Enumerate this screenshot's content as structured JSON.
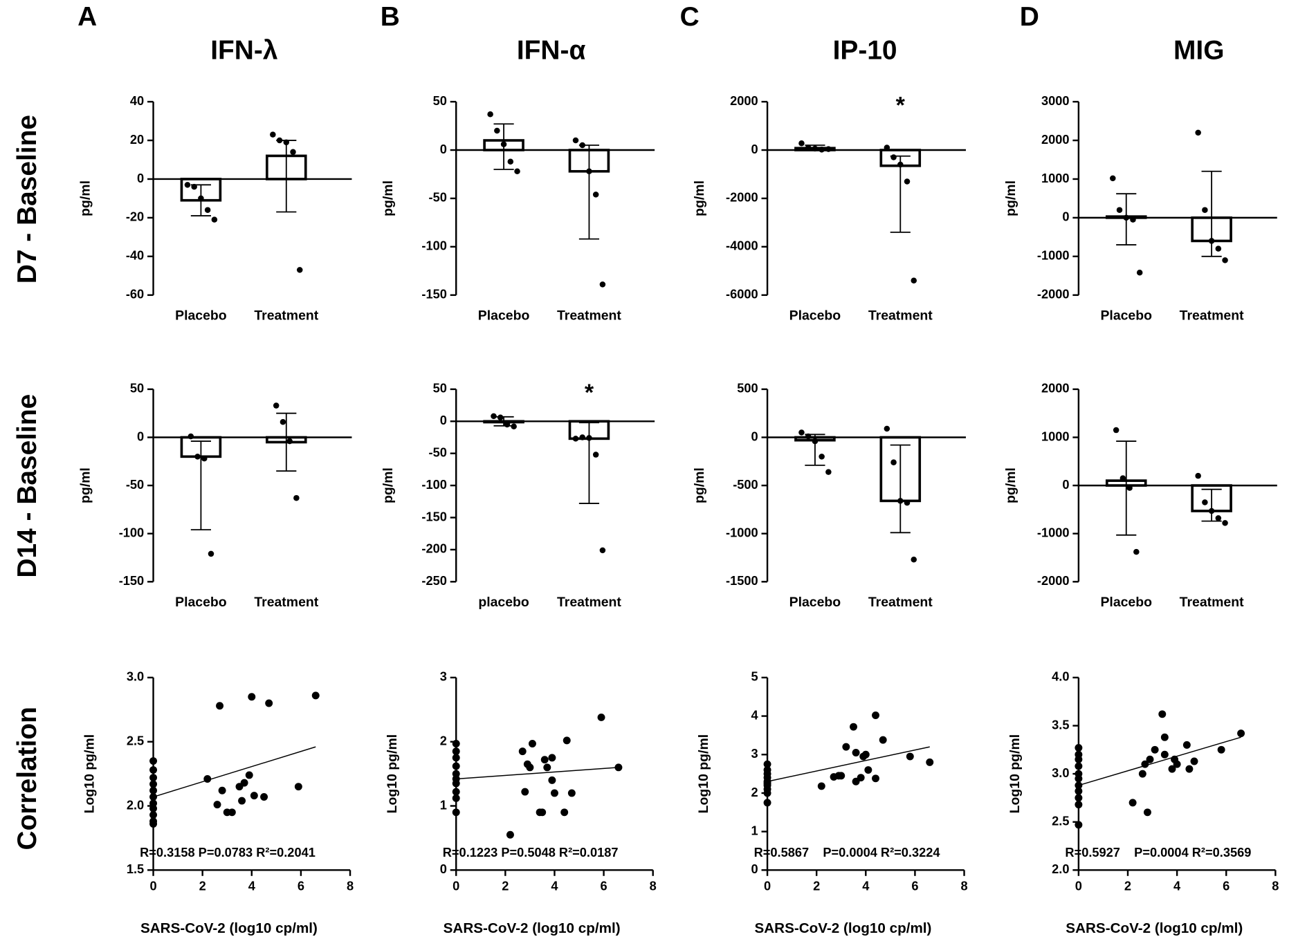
{
  "panel_letters": [
    "A",
    "B",
    "C",
    "D"
  ],
  "column_titles": [
    "IFN-λ",
    "IFN-α",
    "IP-10",
    "MIG"
  ],
  "row_labels": [
    "D7 - Baseline",
    "D14 - Baseline",
    "Correlation"
  ],
  "chart_data": [
    {
      "type": "bar",
      "ylabel": "pg/ml",
      "categories": [
        "Placebo",
        "Treatment"
      ],
      "values": [
        -11,
        12
      ],
      "error_bars": [
        [
          -19,
          -3
        ],
        [
          -17,
          20
        ]
      ],
      "points": [
        [
          -3,
          -4,
          -10,
          -16,
          -21
        ],
        [
          23,
          20,
          19,
          14,
          -47
        ]
      ],
      "ylim": [
        -60,
        40
      ],
      "yticks": [
        -60,
        -40,
        -20,
        0,
        20,
        40
      ]
    },
    {
      "type": "bar",
      "ylabel": "pg/ml",
      "categories": [
        "Placebo",
        "Treatment"
      ],
      "values": [
        10,
        -22
      ],
      "error_bars": [
        [
          -20,
          27
        ],
        [
          -92,
          5
        ]
      ],
      "points": [
        [
          37,
          20,
          6,
          -12,
          -22
        ],
        [
          10,
          5,
          -22,
          -46,
          -139
        ]
      ],
      "ylim": [
        -150,
        50
      ],
      "yticks": [
        -150,
        -100,
        -50,
        0,
        50
      ]
    },
    {
      "type": "bar",
      "ylabel": "pg/ml",
      "categories": [
        "Placebo",
        "Treatment"
      ],
      "values": [
        80,
        -650
      ],
      "error_bars": [
        [
          20,
          200
        ],
        [
          -3400,
          -250
        ]
      ],
      "points": [
        [
          280,
          100,
          60,
          20,
          40
        ],
        [
          100,
          -300,
          -600,
          -1300,
          -5400
        ]
      ],
      "ylim": [
        -6000,
        2000
      ],
      "yticks": [
        -6000,
        -4000,
        -2000,
        0,
        2000
      ],
      "annotation": "*"
    },
    {
      "type": "bar",
      "ylabel": "pg/ml",
      "categories": [
        "Placebo",
        "Treatment"
      ],
      "values": [
        30,
        -600
      ],
      "error_bars": [
        [
          -700,
          620
        ],
        [
          -1000,
          1200
        ]
      ],
      "points": [
        [
          1020,
          200,
          0,
          -50,
          -1420
        ],
        [
          2200,
          200,
          -600,
          -800,
          -1100
        ]
      ],
      "ylim": [
        -2000,
        3000
      ],
      "yticks": [
        -2000,
        -1000,
        0,
        1000,
        2000,
        3000
      ]
    },
    {
      "type": "bar",
      "ylabel": "pg/ml",
      "categories": [
        "Placebo",
        "Treatment"
      ],
      "values": [
        -20,
        -5
      ],
      "error_bars": [
        [
          -96,
          -4
        ],
        [
          -35,
          25
        ]
      ],
      "points": [
        [
          1,
          -20,
          -22,
          -121
        ],
        [
          33,
          16,
          -4,
          -63
        ]
      ],
      "ylim": [
        -150,
        50
      ],
      "yticks": [
        -150,
        -100,
        -50,
        0,
        50
      ]
    },
    {
      "type": "bar",
      "ylabel": "pg/ml",
      "categories": [
        "placebo",
        "Treatment"
      ],
      "values": [
        0,
        -27
      ],
      "error_bars": [
        [
          -7,
          7
        ],
        [
          -128,
          -2
        ]
      ],
      "points": [
        [
          8,
          6,
          -5,
          -8
        ],
        [
          -27,
          -25,
          -26,
          -52,
          -201
        ]
      ],
      "ylim": [
        -250,
        50
      ],
      "yticks": [
        -250,
        -200,
        -150,
        -100,
        -50,
        0,
        50
      ],
      "annotation": "*"
    },
    {
      "type": "bar",
      "ylabel": "pg/ml",
      "categories": [
        "Placebo",
        "Treatment"
      ],
      "values": [
        -30,
        -660
      ],
      "error_bars": [
        [
          -290,
          30
        ],
        [
          -990,
          -80
        ]
      ],
      "points": [
        [
          50,
          10,
          -40,
          -200,
          -360
        ],
        [
          90,
          -260,
          -660,
          -680,
          -1270
        ]
      ],
      "ylim": [
        -1500,
        500
      ],
      "yticks": [
        -1500,
        -1000,
        -500,
        0,
        500
      ]
    },
    {
      "type": "bar",
      "ylabel": "pg/ml",
      "categories": [
        "Placebo",
        "Treatment"
      ],
      "values": [
        100,
        -530
      ],
      "error_bars": [
        [
          -1030,
          920
        ],
        [
          -740,
          -80
        ]
      ],
      "points": [
        [
          1150,
          150,
          -50,
          -1380
        ],
        [
          200,
          -350,
          -530,
          -680,
          -780
        ]
      ],
      "ylim": [
        -2000,
        2000
      ],
      "yticks": [
        -2000,
        -1000,
        0,
        1000,
        2000
      ]
    },
    {
      "type": "scatter",
      "ylabel": "Log10 pg/ml",
      "xlabel": "SARS-CoV-2 (log10 cp/ml)",
      "stats": "R=0.3158 P=0.0783 R²=0.2041",
      "x": [
        0,
        0,
        0,
        0,
        0,
        0,
        0,
        0,
        0,
        0,
        0,
        2.2,
        2.6,
        2.7,
        2.8,
        3.0,
        3.2,
        3.5,
        3.6,
        3.7,
        3.9,
        4.0,
        4.1,
        4.5,
        4.7,
        5.9,
        6.6
      ],
      "y": [
        2.35,
        2.28,
        2.22,
        2.17,
        2.12,
        2.07,
        2.02,
        1.98,
        1.93,
        1.88,
        1.86,
        2.21,
        2.01,
        2.78,
        2.12,
        1.95,
        1.95,
        2.15,
        2.04,
        2.18,
        2.24,
        2.85,
        2.08,
        2.07,
        2.8,
        2.15,
        2.86
      ],
      "fit_line": {
        "x": [
          0,
          6.6
        ],
        "y": [
          2.07,
          2.46
        ]
      },
      "xlim": [
        0,
        8
      ],
      "xticks": [
        0,
        2,
        4,
        6,
        8
      ],
      "ylim": [
        1.5,
        3
      ],
      "yticks": [
        1.5,
        {
          "value": 2,
          "label": "2.0"
        },
        2.5,
        {
          "value": 3,
          "label": "3.0"
        }
      ]
    },
    {
      "type": "scatter",
      "ylabel": "Log10 pg/ml",
      "xlabel": "SARS-CoV-2 (log10 cp/ml)",
      "stats": "R=0.1223 P=0.5048 R²=0.0187",
      "x": [
        0,
        0,
        0,
        0,
        0,
        0,
        0,
        0,
        0,
        0,
        2.2,
        2.7,
        2.8,
        2.9,
        3.0,
        3.1,
        3.4,
        3.5,
        3.6,
        3.7,
        3.9,
        3.9,
        4.0,
        4.4,
        4.5,
        4.7,
        5.9,
        6.6
      ],
      "y": [
        1.97,
        1.85,
        1.75,
        1.62,
        1.5,
        1.42,
        1.35,
        1.22,
        1.12,
        0.9,
        0.55,
        1.85,
        1.22,
        1.65,
        1.6,
        1.97,
        0.9,
        0.9,
        1.72,
        1.6,
        1.75,
        1.4,
        1.2,
        0.9,
        2.02,
        1.2,
        2.38,
        1.6
      ],
      "fit_line": {
        "x": [
          0,
          6.6
        ],
        "y": [
          1.42,
          1.6
        ]
      },
      "xlim": [
        0,
        8
      ],
      "xticks": [
        0,
        2,
        4,
        6,
        8
      ],
      "ylim": [
        0,
        3
      ],
      "yticks": [
        0,
        1,
        2,
        3
      ]
    },
    {
      "type": "scatter",
      "ylabel": "Log10 pg/ml",
      "xlabel": "SARS-CoV-2 (log10 cp/ml)",
      "stats": "R=0.5867    P=0.0004 R²=0.3224",
      "x": [
        0,
        0,
        0,
        0,
        0,
        0,
        0,
        0,
        0,
        0,
        2.2,
        2.7,
        2.9,
        3.0,
        3.2,
        3.5,
        3.6,
        3.6,
        3.8,
        3.9,
        4.0,
        4.1,
        4.4,
        4.4,
        4.7,
        5.8,
        6.6
      ],
      "y": [
        2.75,
        2.6,
        2.5,
        2.4,
        2.3,
        2.25,
        2.2,
        2.1,
        2.0,
        1.75,
        2.18,
        2.42,
        2.45,
        2.45,
        3.2,
        3.72,
        2.3,
        3.05,
        2.4,
        2.95,
        3.0,
        2.6,
        2.38,
        4.02,
        3.38,
        2.95,
        2.8
      ],
      "fit_line": {
        "x": [
          0,
          6.6
        ],
        "y": [
          2.3,
          3.2
        ]
      },
      "xlim": [
        0,
        8
      ],
      "xticks": [
        0,
        2,
        4,
        6,
        8
      ],
      "ylim": [
        0,
        5
      ],
      "yticks": [
        0,
        1,
        2,
        3,
        4,
        5
      ]
    },
    {
      "type": "scatter",
      "ylabel": "Log10 pg/ml",
      "xlabel": "SARS-CoV-2 (log10 cp/ml)",
      "stats": "R=0.5927    P=0.0004 R²=0.3569",
      "x": [
        0,
        0,
        0,
        0,
        0,
        0,
        0,
        0,
        0,
        0,
        0,
        2.2,
        2.6,
        2.7,
        2.8,
        2.9,
        3.1,
        3.4,
        3.5,
        3.5,
        3.8,
        3.9,
        4.0,
        4.4,
        4.5,
        4.7,
        5.8,
        6.6
      ],
      "y": [
        3.27,
        3.2,
        3.15,
        3.08,
        3.0,
        2.95,
        2.88,
        2.82,
        2.75,
        2.68,
        2.47,
        2.7,
        3.0,
        3.1,
        2.6,
        3.15,
        3.25,
        3.62,
        3.38,
        3.2,
        3.05,
        3.15,
        3.1,
        3.3,
        3.05,
        3.13,
        3.25,
        3.42
      ],
      "fit_line": {
        "x": [
          0,
          6.6
        ],
        "y": [
          2.88,
          3.38
        ]
      },
      "xlim": [
        0,
        8
      ],
      "xticks": [
        0,
        2,
        4,
        6,
        8
      ],
      "ylim": [
        2,
        4
      ],
      "yticks": [
        {
          "value": 2,
          "label": "2.0"
        },
        2.5,
        {
          "value": 3,
          "label": "3.0"
        },
        3.5,
        {
          "value": 4,
          "label": "4.0"
        }
      ]
    }
  ]
}
